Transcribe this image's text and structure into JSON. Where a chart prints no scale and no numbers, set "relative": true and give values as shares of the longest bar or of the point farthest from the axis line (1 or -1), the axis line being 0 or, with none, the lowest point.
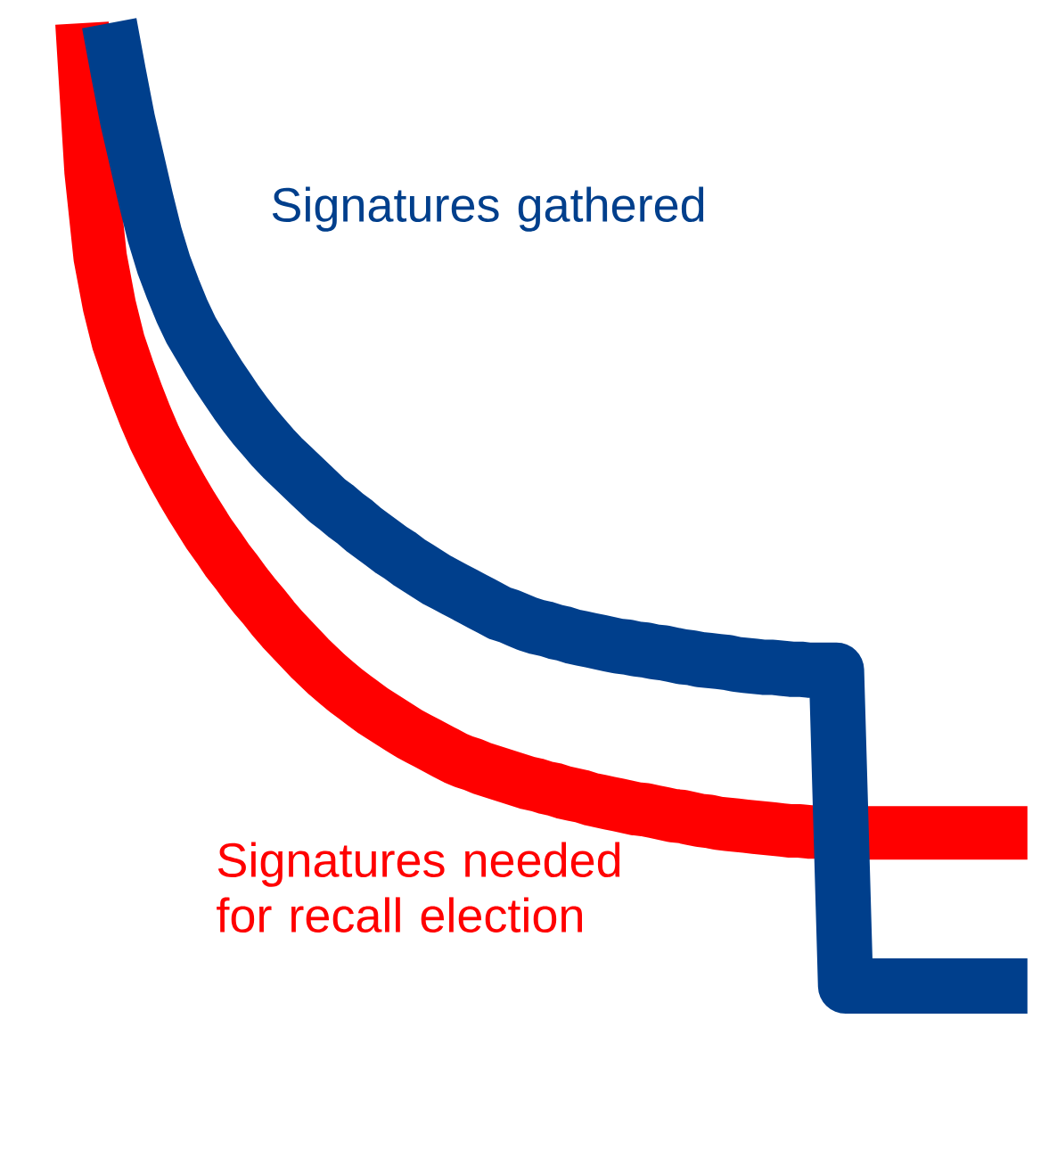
{
  "chart_data": {
    "type": "line",
    "relative": true,
    "categories": [
      null,
      null,
      null,
      null,
      null,
      null,
      null,
      null,
      null,
      null,
      null,
      null,
      null,
      null,
      null,
      null,
      null,
      null,
      null,
      null,
      null,
      null,
      null,
      null,
      null,
      null,
      null,
      null,
      null,
      null,
      null,
      null,
      null,
      null,
      null,
      null,
      null,
      null,
      null,
      null,
      null,
      null,
      null,
      null,
      null,
      null,
      null,
      null,
      null,
      null,
      null,
      null,
      null,
      null,
      null,
      null,
      null,
      null,
      null,
      null,
      null,
      null,
      null,
      null,
      null,
      null,
      null,
      null,
      null,
      null,
      null,
      null,
      null,
      null,
      null,
      null,
      null,
      null,
      null,
      null,
      null,
      null,
      null,
      null,
      null,
      null,
      null,
      null,
      null,
      null,
      null,
      null,
      null,
      null,
      null,
      null,
      null,
      null,
      null,
      null,
      null,
      null,
      null,
      null,
      null
    ],
    "series": [
      {
        "name": "Signatures needed for recall election",
        "color": "#ff0000",
        "values": [
          1.0,
          0.846,
          0.757,
          0.707,
          0.669,
          0.641,
          0.615,
          0.591,
          0.569,
          0.55,
          0.532,
          0.515,
          0.499,
          0.484,
          0.469,
          0.456,
          0.442,
          0.43,
          0.417,
          0.405,
          0.394,
          0.382,
          0.371,
          0.361,
          0.351,
          0.341,
          0.332,
          0.323,
          0.315,
          0.307,
          0.3,
          0.293,
          0.286,
          0.28,
          0.274,
          0.268,
          0.262,
          0.257,
          0.252,
          0.247,
          0.242,
          0.237,
          0.233,
          0.23,
          0.226,
          0.223,
          0.22,
          0.217,
          0.214,
          0.211,
          0.209,
          0.206,
          0.204,
          0.201,
          0.199,
          0.197,
          0.194,
          0.192,
          0.19,
          0.188,
          0.186,
          0.184,
          0.183,
          0.181,
          0.179,
          0.177,
          0.176,
          0.174,
          0.172,
          0.171,
          0.169,
          0.168,
          0.167,
          0.166,
          0.165,
          0.164,
          0.163,
          0.162,
          0.161,
          0.161,
          0.16,
          0.16,
          null,
          null,
          null,
          null,
          0.159,
          0.159,
          0.159,
          0.159,
          0.159,
          0.159,
          0.159,
          0.159,
          0.159,
          0.159,
          0.159,
          0.159,
          0.159,
          0.159,
          0.159,
          0.159,
          0.159,
          0.159,
          0.159
        ]
      },
      {
        "name": "Signatures gathered",
        "color": "#003f8c",
        "values": [
          null,
          null,
          null,
          1.0,
          0.949,
          0.9,
          0.859,
          0.818,
          0.78,
          0.749,
          0.724,
          0.701,
          0.681,
          0.665,
          0.649,
          0.634,
          0.62,
          0.606,
          0.593,
          0.581,
          0.57,
          0.559,
          0.549,
          0.54,
          0.531,
          0.522,
          0.513,
          0.504,
          0.497,
          0.489,
          0.482,
          0.474,
          0.467,
          0.46,
          0.453,
          0.447,
          0.44,
          0.434,
          0.428,
          0.422,
          0.417,
          0.412,
          0.407,
          0.402,
          0.397,
          0.392,
          0.387,
          0.384,
          0.38,
          0.376,
          0.373,
          0.371,
          0.368,
          0.366,
          0.363,
          0.361,
          0.359,
          0.357,
          0.355,
          0.353,
          0.352,
          0.35,
          0.349,
          0.347,
          0.346,
          0.344,
          0.342,
          0.341,
          0.339,
          0.338,
          0.337,
          0.336,
          0.334,
          0.333,
          0.332,
          0.331,
          0.331,
          0.33,
          0.329,
          0.329,
          0.328,
          0.328,
          0.328,
          0.328,
          0,
          0,
          0,
          0,
          0,
          0,
          0,
          0,
          0,
          0,
          0,
          0,
          0,
          0,
          0,
          0,
          0,
          0,
          0,
          0,
          0
        ]
      }
    ]
  }
}
